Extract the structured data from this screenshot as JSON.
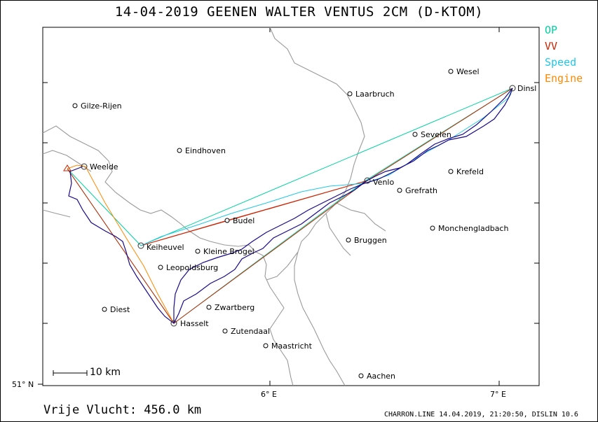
{
  "title": "14-04-2019   GEENEN WALTER   VENTUS 2CM (D-KTOM)",
  "legend": [
    {
      "label": "OP",
      "color": "#00d3a0"
    },
    {
      "label": "VV",
      "color": "#cc2200"
    },
    {
      "label": "Speed",
      "color": "#22c8e8"
    },
    {
      "label": "Engine",
      "color": "#ff8800"
    }
  ],
  "axes": {
    "lat_label": "51° N",
    "lon_labels": [
      "6° E",
      "7° E"
    ]
  },
  "scale_bar": "10 km",
  "footer": {
    "distance": "Vrije Vlucht:  456.0 km",
    "credits": "CHARRON.LINE 14.04.2019, 21:20:50, DISLIN 10.6"
  },
  "cities": [
    {
      "id": "wesel",
      "name": "Wesel"
    },
    {
      "id": "laarbruch",
      "name": "Laarbruch"
    },
    {
      "id": "dinslaken",
      "name": "Dinsl"
    },
    {
      "id": "gilze",
      "name": "Gilze-Rijen"
    },
    {
      "id": "sevelen",
      "name": "Sevelen"
    },
    {
      "id": "eindhoven",
      "name": "Eindhoven"
    },
    {
      "id": "weelde",
      "name": "Weelde"
    },
    {
      "id": "krefeld",
      "name": "Krefeld"
    },
    {
      "id": "venlo",
      "name": "Venlo"
    },
    {
      "id": "grefrath",
      "name": "Grefrath"
    },
    {
      "id": "budel",
      "name": "Budel"
    },
    {
      "id": "moenchengladbach",
      "name": "Monchengladbach"
    },
    {
      "id": "bruggen",
      "name": "Bruggen"
    },
    {
      "id": "keiheuvel",
      "name": "Keiheuvel"
    },
    {
      "id": "kleinebrogel",
      "name": "Kleine Brogel"
    },
    {
      "id": "leopoldsburg",
      "name": "Leopoldsburg"
    },
    {
      "id": "diest",
      "name": "Diest"
    },
    {
      "id": "zwartberg",
      "name": "Zwartberg"
    },
    {
      "id": "hasselt",
      "name": "Hasselt"
    },
    {
      "id": "zutendaal",
      "name": "Zutendaal"
    },
    {
      "id": "maastricht",
      "name": "Maastricht"
    },
    {
      "id": "aachen",
      "name": "Aachen"
    }
  ],
  "colors": {
    "track": "#1a0a8a",
    "border": "#999999"
  }
}
